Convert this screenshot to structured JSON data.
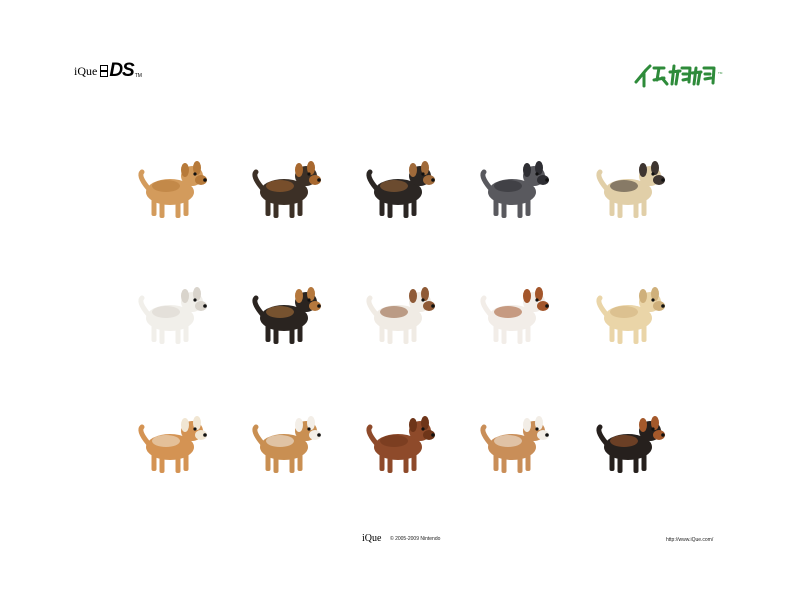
{
  "header": {
    "ique_label": "iQue",
    "ds_label": "DS",
    "tm_label": "TM",
    "brand_logo_icon": "nintendogs-chinese-logo-icon",
    "brand_color": "#2e8b3a"
  },
  "dogs": [
    {
      "icon": "dachshund-puppy-icon"
    },
    {
      "icon": "german-shepherd-puppy-icon"
    },
    {
      "icon": "yorkshire-terrier-puppy-icon"
    },
    {
      "icon": "miniature-schnauzer-puppy-icon"
    },
    {
      "icon": "pug-puppy-icon"
    },
    {
      "icon": "chihuahua-puppy-icon"
    },
    {
      "icon": "beagle-puppy-icon"
    },
    {
      "icon": "shih-tzu-puppy-icon"
    },
    {
      "icon": "cavalier-king-charles-puppy-icon"
    },
    {
      "icon": "labrador-puppy-icon"
    },
    {
      "icon": "shiba-inu-puppy-icon"
    },
    {
      "icon": "shetland-sheepdog-puppy-icon"
    },
    {
      "icon": "toy-poodle-puppy-icon"
    },
    {
      "icon": "corgi-puppy-icon"
    },
    {
      "icon": "miniature-pinscher-puppy-icon"
    }
  ],
  "footer": {
    "ique_label": "iQue",
    "copyright": "© 2005-2009 Nintendo",
    "url": "http://www.iQue.com/"
  }
}
